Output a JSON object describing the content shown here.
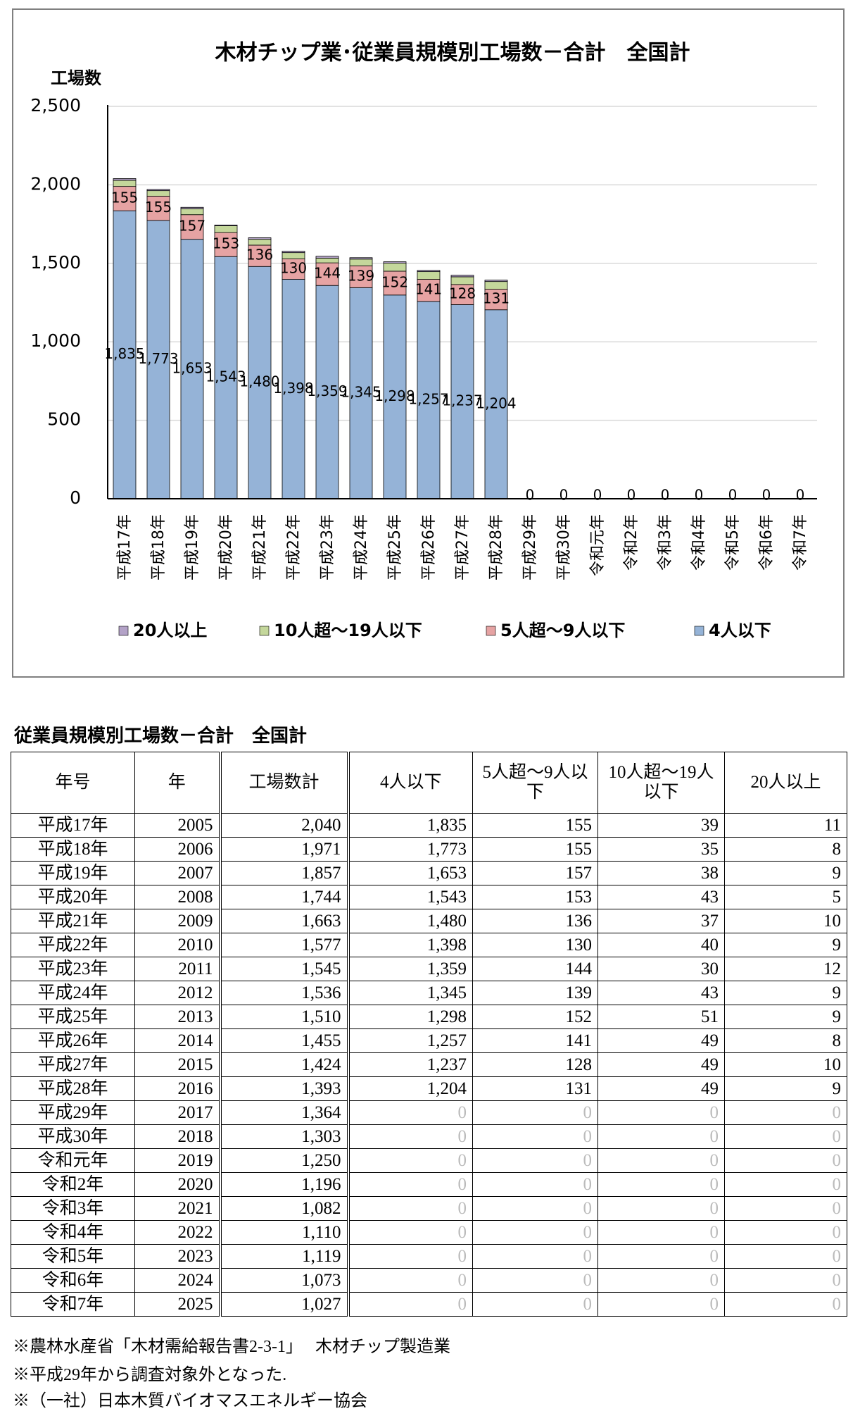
{
  "chart_data": {
    "type": "stacked_bar",
    "title": "木材チップ業･従業員規模別工場数－合計　全国計",
    "y_label": "工場数",
    "categories": [
      "平成17年",
      "平成18年",
      "平成19年",
      "平成20年",
      "平成21年",
      "平成22年",
      "平成23年",
      "平成24年",
      "平成25年",
      "平成26年",
      "平成27年",
      "平成28年",
      "平成29年",
      "平成30年",
      "令和元年",
      "令和2年",
      "令和3年",
      "令和4年",
      "令和5年",
      "令和6年",
      "令和7年"
    ],
    "ylim": [
      0,
      2500
    ],
    "yticks": [
      0,
      500,
      {
        "value": 1000,
        "label": "1,000"
      },
      {
        "value": 1500,
        "label": "1,500"
      },
      {
        "value": 2000,
        "label": "2,000"
      },
      {
        "value": 2500,
        "label": "2,500"
      }
    ],
    "grid": true,
    "series": [
      {
        "name": "4人以下",
        "color": "#95b3d7",
        "values": [
          1835,
          1773,
          1653,
          1543,
          1480,
          1398,
          1359,
          1345,
          1298,
          1257,
          1237,
          1204,
          0,
          0,
          0,
          0,
          0,
          0,
          0,
          0,
          0
        ],
        "value_labels": [
          "1,835",
          "1,773",
          "1,653",
          "1,543",
          "1,480",
          "1,398",
          "1,359",
          "1,345",
          "1,298",
          "1,257",
          "1,237",
          "1,204",
          "0",
          "0",
          "0",
          "0",
          "0",
          "0",
          "0",
          "0",
          "0"
        ]
      },
      {
        "name": "5人超～9人以下",
        "color": "#e6a3a3",
        "values": [
          155,
          155,
          157,
          153,
          136,
          130,
          144,
          139,
          152,
          141,
          128,
          131,
          0,
          0,
          0,
          0,
          0,
          0,
          0,
          0,
          0
        ]
      },
      {
        "name": "10人超～19人以下",
        "color": "#c4d79b",
        "values": [
          39,
          35,
          38,
          43,
          37,
          40,
          30,
          43,
          51,
          49,
          49,
          49,
          0,
          0,
          0,
          0,
          0,
          0,
          0,
          0,
          0
        ]
      },
      {
        "name": "20人以上",
        "color": "#b3a2c7",
        "values": [
          11,
          8,
          9,
          5,
          10,
          9,
          12,
          9,
          9,
          8,
          10,
          9,
          0,
          0,
          0,
          0,
          0,
          0,
          0,
          0,
          0
        ]
      }
    ]
  },
  "table": {
    "title": "従業員規模別工場数－合計　全国計",
    "header": [
      "年号",
      "年",
      "工場数計",
      "4人以下",
      "5人超～9人以下",
      "10人超～19人以下",
      "20人以上"
    ],
    "rows": [
      [
        "平成17年",
        "2005",
        "2,040",
        "1,835",
        "155",
        "39",
        "11"
      ],
      [
        "平成18年",
        "2006",
        "1,971",
        "1,773",
        "155",
        "35",
        "8"
      ],
      [
        "平成19年",
        "2007",
        "1,857",
        "1,653",
        "157",
        "38",
        "9"
      ],
      [
        "平成20年",
        "2008",
        "1,744",
        "1,543",
        "153",
        "43",
        "5"
      ],
      [
        "平成21年",
        "2009",
        "1,663",
        "1,480",
        "136",
        "37",
        "10"
      ],
      [
        "平成22年",
        "2010",
        "1,577",
        "1,398",
        "130",
        "40",
        "9"
      ],
      [
        "平成23年",
        "2011",
        "1,545",
        "1,359",
        "144",
        "30",
        "12"
      ],
      [
        "平成24年",
        "2012",
        "1,536",
        "1,345",
        "139",
        "43",
        "9"
      ],
      [
        "平成25年",
        "2013",
        "1,510",
        "1,298",
        "152",
        "51",
        "9"
      ],
      [
        "平成26年",
        "2014",
        "1,455",
        "1,257",
        "141",
        "49",
        "8"
      ],
      [
        "平成27年",
        "2015",
        "1,424",
        "1,237",
        "128",
        "49",
        "10"
      ],
      [
        "平成28年",
        "2016",
        "1,393",
        "1,204",
        "131",
        "49",
        "9"
      ],
      [
        "平成29年",
        "2017",
        "1,364",
        "0",
        "0",
        "0",
        "0"
      ],
      [
        "平成30年",
        "2018",
        "1,303",
        "0",
        "0",
        "0",
        "0"
      ],
      [
        "令和元年",
        "2019",
        "1,250",
        "0",
        "0",
        "0",
        "0"
      ],
      [
        "令和2年",
        "2020",
        "1,196",
        "0",
        "0",
        "0",
        "0"
      ],
      [
        "令和3年",
        "2021",
        "1,082",
        "0",
        "0",
        "0",
        "0"
      ],
      [
        "令和4年",
        "2022",
        "1,110",
        "0",
        "0",
        "0",
        "0"
      ],
      [
        "令和5年",
        "2023",
        "1,119",
        "0",
        "0",
        "0",
        "0"
      ],
      [
        "令和6年",
        "2024",
        "1,073",
        "0",
        "0",
        "0",
        "0"
      ],
      [
        "令和7年",
        "2025",
        "1,027",
        "0",
        "0",
        "0",
        "0"
      ]
    ]
  },
  "notes": [
    "※農林水産省「木材需給報告書2-3-1」　 木材チップ製造業",
    "※平成29年から調査対象外となった.",
    "※（一社）日本木質バイオマスエネルギー協会"
  ]
}
